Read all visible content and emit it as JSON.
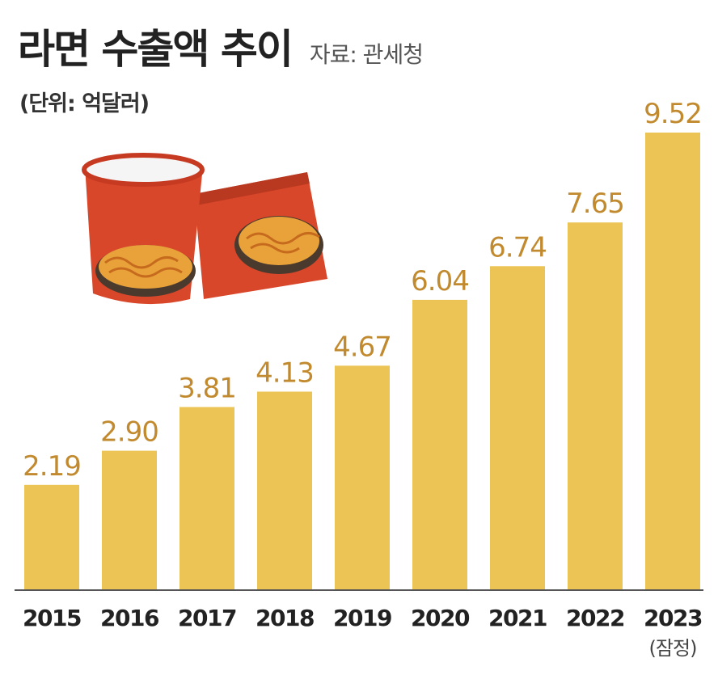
{
  "header": {
    "title": "라면 수출액 추이",
    "source": "자료: 관세청",
    "unit": "(단위: 억달러)"
  },
  "colors": {
    "bar": "#ECC455",
    "value_label": "#C28A2E",
    "axis_label": "#222222",
    "baseline": "#555555"
  },
  "chart_data": {
    "type": "bar",
    "title": "라면 수출액 추이",
    "unit": "(단위: 억달러)",
    "source": "자료: 관세청",
    "categories": [
      "2015",
      "2016",
      "2017",
      "2018",
      "2019",
      "2020",
      "2021",
      "2022",
      "2023"
    ],
    "category_notes": [
      "",
      "",
      "",
      "",
      "",
      "",
      "",
      "",
      "(잠정)"
    ],
    "values": [
      2.19,
      2.9,
      3.81,
      4.13,
      4.67,
      6.04,
      6.74,
      7.65,
      9.52
    ],
    "value_labels": [
      "2.19",
      "2.90",
      "3.81",
      "4.13",
      "4.67",
      "6.04",
      "6.74",
      "7.65",
      "9.52"
    ],
    "ylim": [
      0,
      10
    ],
    "grid": false,
    "legend": "none"
  }
}
